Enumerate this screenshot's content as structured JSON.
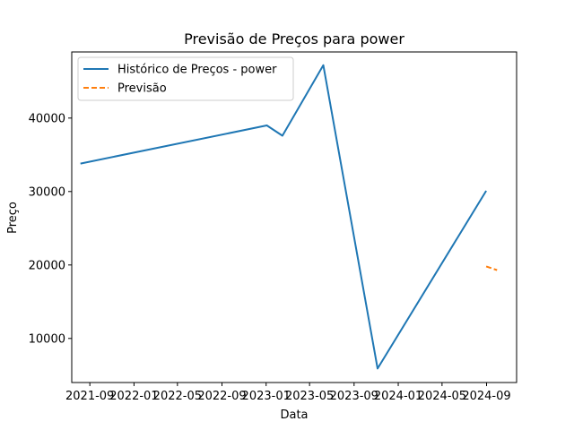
{
  "chart_data": {
    "type": "line",
    "title": "Previsão de Preços para power",
    "xlabel": "Data",
    "ylabel": "Preço",
    "xlim": [
      "2021-07-13",
      "2024-11-23"
    ],
    "ylim": [
      4000,
      49000
    ],
    "x_ticks": [
      "2021-09",
      "2022-01",
      "2022-05",
      "2022-09",
      "2023-01",
      "2023-05",
      "2023-09",
      "2024-01",
      "2024-05",
      "2024-09"
    ],
    "y_ticks": [
      10000,
      20000,
      30000,
      40000
    ],
    "grid": false,
    "legend": "upper-left",
    "series": [
      {
        "name": "Histórico de Preços - power",
        "color": "#1f77b4",
        "style": "solid",
        "points": [
          {
            "x": "2021-08-06",
            "y": 33800
          },
          {
            "x": "2023-01-03",
            "y": 39000
          },
          {
            "x": "2023-02-15",
            "y": 37600
          },
          {
            "x": "2023-06-08",
            "y": 47200
          },
          {
            "x": "2023-11-05",
            "y": 5900
          },
          {
            "x": "2024-08-31",
            "y": 30100
          }
        ]
      },
      {
        "name": "Previsão",
        "color": "#ff7f0e",
        "style": "dashed",
        "points": [
          {
            "x": "2024-08-31",
            "y": 19800
          },
          {
            "x": "2024-09-30",
            "y": 19300
          }
        ]
      }
    ]
  }
}
